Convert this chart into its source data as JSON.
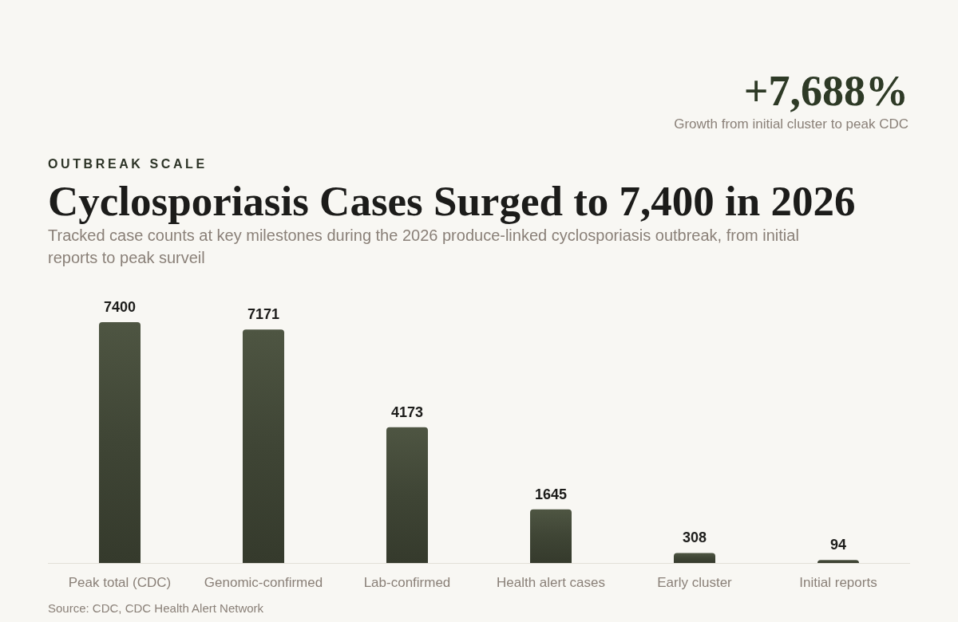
{
  "chart_data": {
    "type": "bar",
    "title": "Cyclosporiasis Cases Surged to 7,400 in 2026",
    "subtitle": "Tracked case counts at key milestones during the 2026 produce-linked cyclosporiasis outbreak, from initial reports to peak surveil",
    "categories": [
      "Peak total (CDC)",
      "Genomic-confirmed",
      "Lab-confirmed",
      "Health alert cases",
      "Early cluster",
      "Initial reports"
    ],
    "values": [
      7400,
      7171,
      4173,
      1645,
      308,
      94
    ],
    "color": "#3f4535",
    "data_labels": true,
    "annotations": [
      "OUTBREAK SCALE",
      "+7,688%",
      "Growth from initial cluster to peak CDC",
      "Source: CDC, CDC Health Alert Network"
    ]
  }
}
